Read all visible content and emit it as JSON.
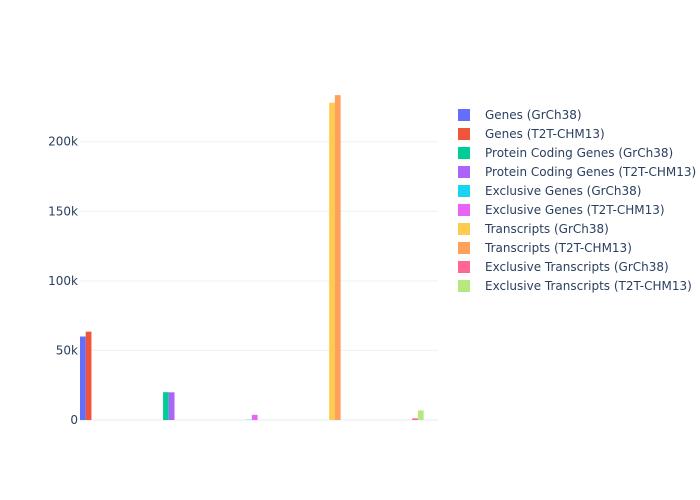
{
  "chart_data": {
    "type": "bar",
    "title": "",
    "xlabel": "",
    "ylabel": "",
    "ylim": [
      0,
      230000
    ],
    "yticks": [
      0,
      50000,
      100000,
      150000,
      200000
    ],
    "ytick_labels": [
      "0",
      "50k",
      "100k",
      "150k",
      "200k"
    ],
    "grid": true,
    "legend_position": "right",
    "groups": 5,
    "series": [
      {
        "name": "Genes (GrCh38)",
        "color": "#636efa",
        "group": 0,
        "value": 60000
      },
      {
        "name": "Genes (T2T-CHM13)",
        "color": "#EF553B",
        "group": 0,
        "value": 63500
      },
      {
        "name": "Protein Coding Genes (GrCh38)",
        "color": "#00cc96",
        "group": 1,
        "value": 20000
      },
      {
        "name": "Protein Coding Genes (T2T-CHM13)",
        "color": "#ab63fa",
        "group": 1,
        "value": 19900
      },
      {
        "name": "Exclusive Genes (GrCh38)",
        "color": "#19d3f3",
        "group": 2,
        "value": 250
      },
      {
        "name": "Exclusive Genes (T2T-CHM13)",
        "color": "#e763fa",
        "group": 2,
        "value": 3700
      },
      {
        "name": "Transcripts (GrCh38)",
        "color": "#FECB52",
        "group": 3,
        "value": 228000
      },
      {
        "name": "Transcripts (T2T-CHM13)",
        "color": "#FFA15A",
        "group": 3,
        "value": 233500
      },
      {
        "name": "Exclusive Transcripts (GrCh38)",
        "color": "#FF6692",
        "group": 4,
        "value": 1200
      },
      {
        "name": "Exclusive Transcripts (T2T-CHM13)",
        "color": "#B6E880",
        "group": 4,
        "value": 6900
      }
    ]
  }
}
